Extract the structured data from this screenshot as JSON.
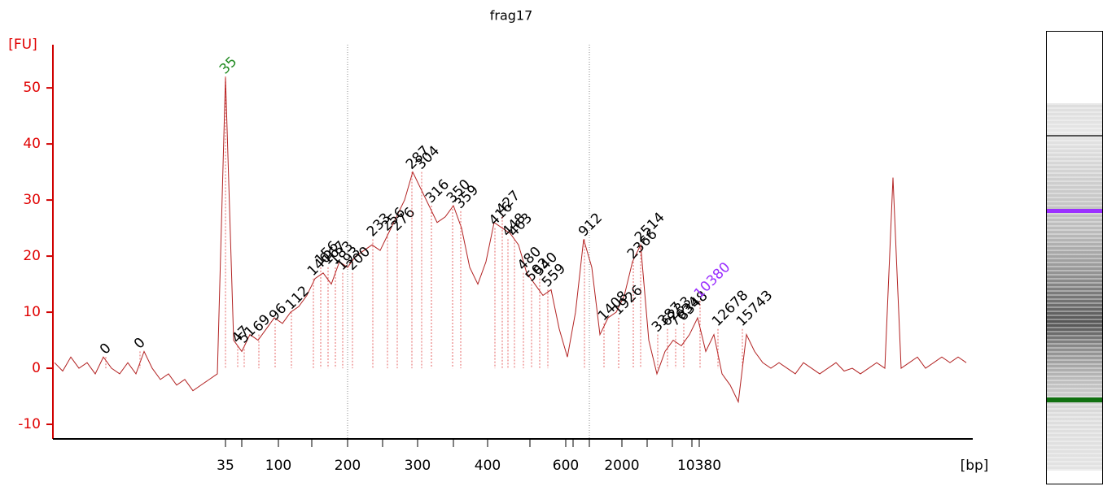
{
  "chart_data": {
    "type": "line",
    "title": "frag17",
    "ylabel": "[FU]",
    "xlabel": "[bp]",
    "ylim": [
      -12.6,
      57.7
    ],
    "yticks": [
      -10,
      0,
      10,
      20,
      30,
      40,
      50
    ],
    "xticks": [
      35,
      100,
      200,
      300,
      400,
      600,
      2000,
      10380
    ],
    "series": [
      {
        "name": "frag17",
        "color": "#b22222",
        "values": [
          1,
          -0.5,
          2,
          0,
          1,
          -1,
          2,
          0,
          -1,
          1,
          -1,
          3,
          0,
          -2,
          -1,
          -3,
          -2,
          -4,
          -3,
          -2,
          -1,
          52,
          5,
          3,
          6,
          5,
          7,
          9,
          8,
          10,
          11,
          13,
          16,
          17,
          15,
          19,
          18,
          20,
          21,
          22,
          21,
          24,
          27,
          30,
          35,
          32,
          29,
          26,
          27,
          29,
          25,
          18,
          15,
          19,
          26,
          25,
          24,
          22,
          17,
          15,
          13,
          14,
          7,
          2,
          10,
          23,
          18,
          6,
          9,
          10,
          13,
          19,
          22,
          5,
          -1,
          3,
          5,
          4,
          6,
          9,
          3,
          6,
          -1,
          -3,
          -6,
          6,
          3,
          1,
          0,
          1,
          0,
          -1,
          1,
          0,
          -1,
          0,
          1,
          -0.5,
          0,
          -1,
          0,
          1,
          0,
          34,
          0,
          1,
          2,
          0,
          1,
          2,
          1,
          2,
          1
        ]
      }
    ],
    "peaks": [
      {
        "size": 0,
        "height": 2
      },
      {
        "size": 0,
        "height": 3
      },
      {
        "size": 35,
        "height": 52,
        "color": "#228b22"
      },
      {
        "size": 47,
        "height": 4
      },
      {
        "size": 51,
        "height": 4
      },
      {
        "size": 69,
        "height": 6
      },
      {
        "size": 96,
        "height": 8
      },
      {
        "size": 112,
        "height": 10
      },
      {
        "size": 140,
        "height": 16
      },
      {
        "size": 156,
        "height": 18
      },
      {
        "size": 167,
        "height": 18
      },
      {
        "size": 183,
        "height": 18
      },
      {
        "size": 193,
        "height": 17
      },
      {
        "size": 200,
        "height": 17
      },
      {
        "size": 233,
        "height": 23
      },
      {
        "size": 256,
        "height": 24
      },
      {
        "size": 276,
        "height": 24
      },
      {
        "size": 287,
        "height": 35
      },
      {
        "size": 304,
        "height": 35
      },
      {
        "size": 316,
        "height": 29
      },
      {
        "size": 350,
        "height": 29
      },
      {
        "size": 359,
        "height": 28
      },
      {
        "size": 416,
        "height": 25
      },
      {
        "size": 427,
        "height": 27
      },
      {
        "size": 448,
        "height": 23
      },
      {
        "size": 463,
        "height": 23
      },
      {
        "size": 480,
        "height": 17
      },
      {
        "size": 503,
        "height": 15
      },
      {
        "size": 540,
        "height": 16
      },
      {
        "size": 559,
        "height": 14
      },
      {
        "size": 912,
        "height": 23
      },
      {
        "size": 1408,
        "height": 8
      },
      {
        "size": 1926,
        "height": 9
      },
      {
        "size": 2366,
        "height": 19
      },
      {
        "size": 2514,
        "height": 22
      },
      {
        "size": 3387,
        "height": 6
      },
      {
        "size": 6233,
        "height": 7
      },
      {
        "size": 7634,
        "height": 7
      },
      {
        "size": 8348,
        "height": 8
      },
      {
        "size": 10380,
        "height": 12,
        "color": "#9b30ff"
      },
      {
        "size": 12678,
        "height": 7
      },
      {
        "size": 15743,
        "height": 7
      }
    ]
  }
}
